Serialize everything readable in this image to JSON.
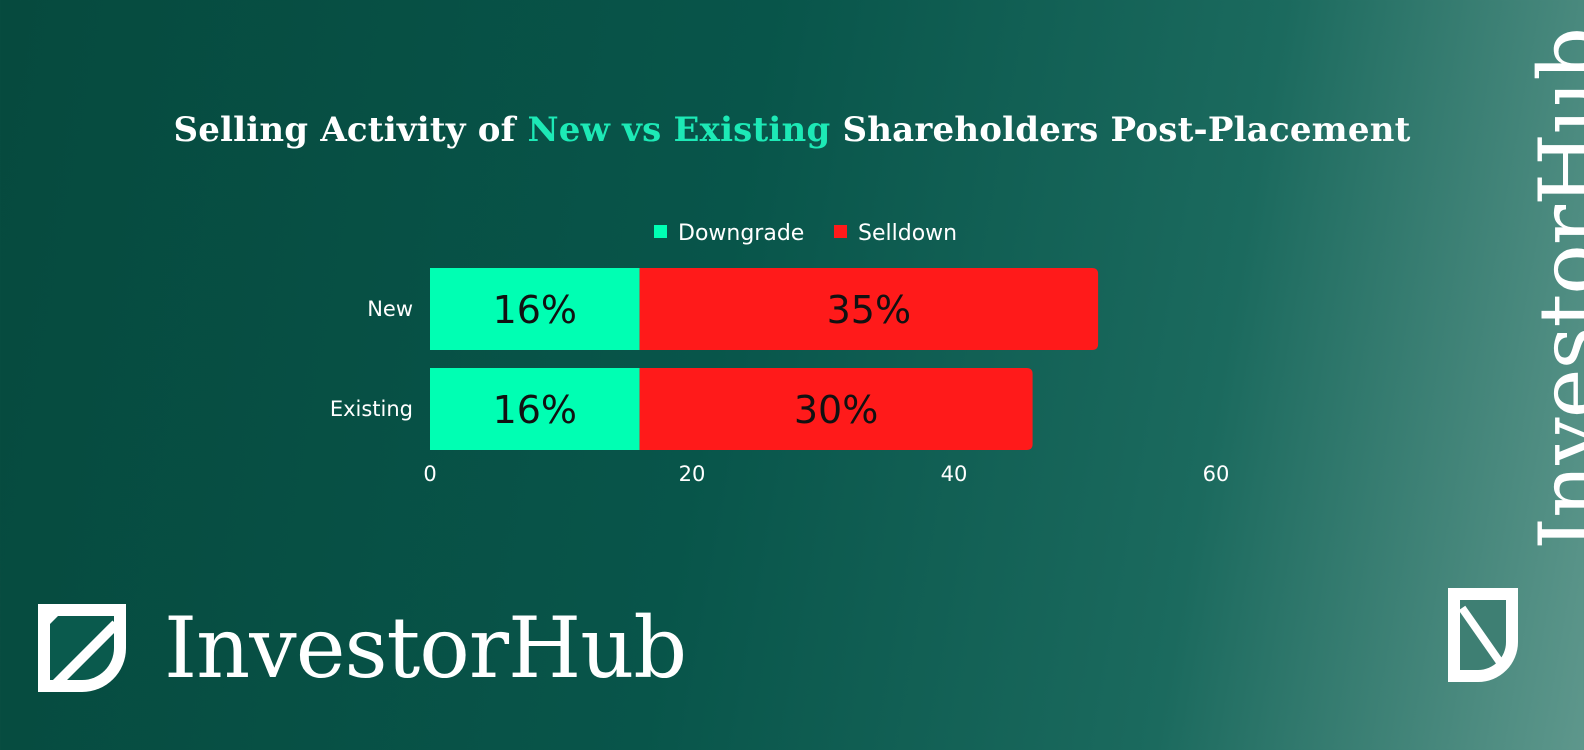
{
  "title": {
    "part1": "Selling Activity of ",
    "highlight": "New vs Existing",
    "part2": " Shareholders Post-Placement"
  },
  "brand": {
    "name": "InvestorHub"
  },
  "colors": {
    "downgrade": "#00ffb3",
    "selldown": "#ff1a1a",
    "highlight": "#1de9b6",
    "text": "#ffffff"
  },
  "chart_data": {
    "type": "bar",
    "orientation": "horizontal",
    "stacked": true,
    "categories": [
      "New",
      "Existing"
    ],
    "series": [
      {
        "name": "Downgrade",
        "values": [
          16,
          16
        ],
        "labels": [
          "16%",
          "16%"
        ],
        "color": "#00ffb3"
      },
      {
        "name": "Selldown",
        "values": [
          35,
          30
        ],
        "labels": [
          "35%",
          "30%"
        ],
        "color": "#ff1a1a"
      }
    ],
    "xlim": [
      0,
      60
    ],
    "xticks": [
      0,
      20,
      40,
      60
    ],
    "xticklabels": [
      "0",
      "20",
      "40",
      "60"
    ],
    "legend_position": "top",
    "grid": false
  }
}
